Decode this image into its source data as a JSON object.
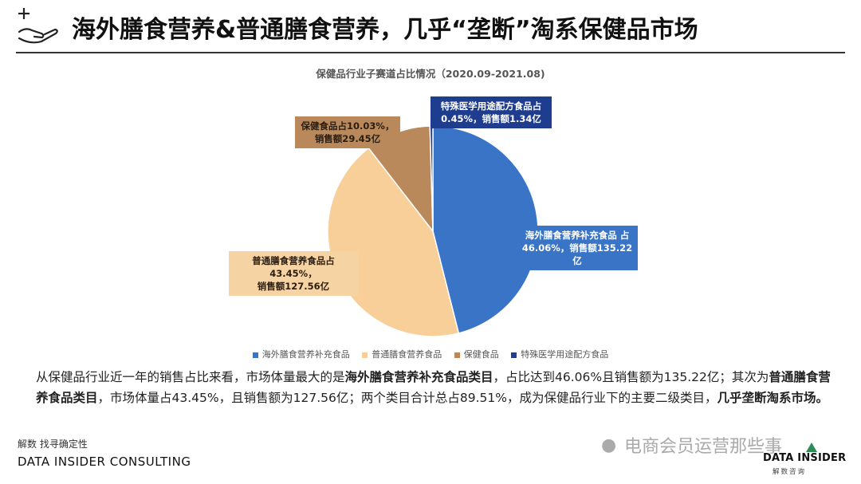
{
  "header": {
    "title": "海外膳食营养&普通膳食营养，几乎“垄断”淘系保健品市场",
    "icon": "hand-with-plus-icon"
  },
  "chart_data": {
    "type": "pie",
    "title": "保健品行业子赛道占比情况（2020.09-2021.08)",
    "categories": [
      "海外膳食营养补充食品",
      "普通膳食营养食品",
      "保健食品",
      "特殊医学用途配方食品"
    ],
    "values": [
      46.06,
      43.45,
      10.03,
      0.45
    ],
    "unit": "%",
    "sales": [
      135.22,
      127.56,
      29.45,
      1.34
    ],
    "colors": [
      "#3a74c6",
      "#f8cf98",
      "#b9895c",
      "#1f3d8f"
    ],
    "data_labels": [
      [
        "海外膳食营养补充食品 占",
        "46.06%，销售额135.22亿"
      ],
      [
        "普通膳食营养食品占43.45%，",
        "销售额127.56亿"
      ],
      [
        "保健食品占10.03%，",
        "销售额29.45亿"
      ],
      [
        "特殊医学用途配方食品占",
        "0.45%，销售额1.34亿"
      ]
    ],
    "legend_position": "bottom"
  },
  "summary": {
    "p1": "从保健品行业近一年的销售占比来看，市场体量最大的是",
    "b1": "海外膳食营养补充食品类目",
    "p2": "，占比达到46.06%且销售额为135.22亿；其次为",
    "b2": "普通膳食营养食品类目",
    "p3": "，市场体量占43.45%，且销售额为127.56亿；两个类目合计总占89.51%，成为保健品行业下的主要二级类目，",
    "b3": "几乎垄断淘系市场。"
  },
  "footer": {
    "tag": "解数 找寻确定性",
    "company": "DATA INSIDER CONSULTING",
    "watermark": "电商会员运营那些事",
    "watermark_icon": "wechat-icon",
    "logo_main": "DATA INSIDER",
    "logo_sub": "解数咨询"
  }
}
